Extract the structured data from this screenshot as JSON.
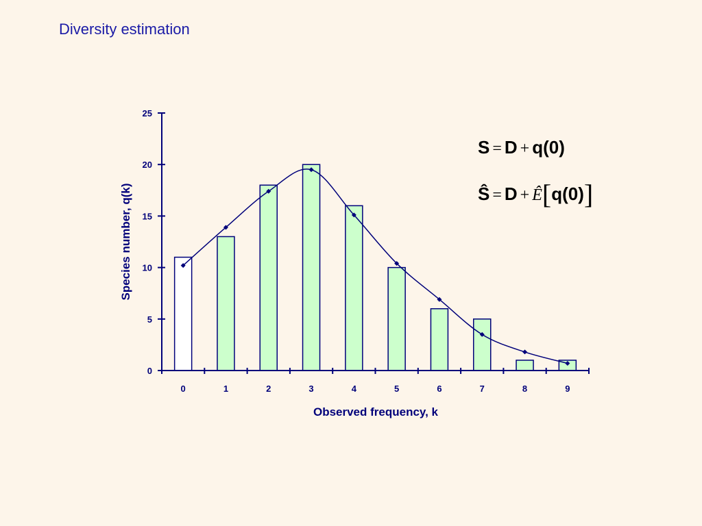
{
  "slide": {
    "title": "Diversity estimation"
  },
  "colors": {
    "axis": "#00007a",
    "bar_fill": "#ccffcc",
    "bar_first_fill": "#ffffff",
    "bar_stroke": "#00007a",
    "curve": "#00007a",
    "background": "#fdf5ea"
  },
  "formulas": {
    "f1": {
      "lhs": "S",
      "eq": "=",
      "d": "D",
      "plus": "+",
      "q": "q(0)"
    },
    "f2": {
      "lhs": "Ŝ",
      "eq": "=",
      "d": "D",
      "plus": "+",
      "e": "Ê",
      "lbr": "[",
      "q": "q(0)",
      "rbr": "]"
    }
  },
  "chart_data": {
    "type": "bar",
    "xlabel": "Observed frequency, k",
    "ylabel": "Species number, q(k)",
    "categories": [
      "0",
      "1",
      "2",
      "3",
      "4",
      "5",
      "6",
      "7",
      "8",
      "9"
    ],
    "ylim": [
      0,
      25
    ],
    "yticks": [
      "0",
      "5",
      "10",
      "15",
      "20",
      "25"
    ],
    "series": [
      {
        "type": "bar",
        "values": [
          11,
          13,
          18,
          20,
          16,
          10,
          6,
          5,
          1,
          1
        ]
      },
      {
        "type": "line",
        "markers": "diamond",
        "smooth": true,
        "values": [
          10.2,
          13.9,
          17.4,
          19.5,
          15.1,
          10.4,
          6.9,
          3.5,
          1.8,
          0.7
        ]
      }
    ]
  }
}
